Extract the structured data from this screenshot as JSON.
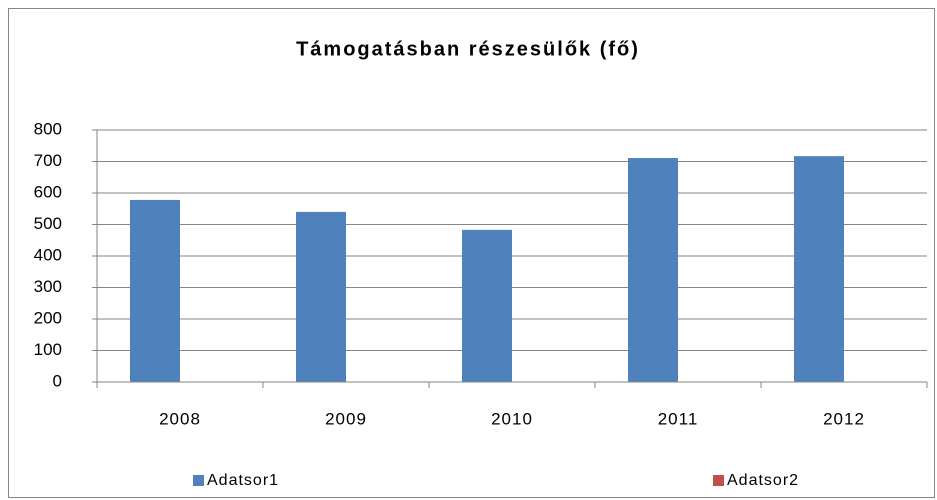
{
  "chart_data": {
    "type": "bar",
    "title": "Támogatásban részesülők (fő)",
    "categories": [
      "2008",
      "2009",
      "2010",
      "2011",
      "2012"
    ],
    "series": [
      {
        "name": "Adatsor1",
        "color": "#4f81bd",
        "values": [
          578,
          540,
          483,
          711,
          717
        ]
      },
      {
        "name": "Adatsor2",
        "color": "#c0504d",
        "values": [
          null,
          null,
          null,
          null,
          null
        ]
      }
    ],
    "ylim": [
      0,
      800
    ],
    "yticks": [
      0,
      100,
      200,
      300,
      400,
      500,
      600,
      700,
      800
    ],
    "grid": true,
    "legend": "bottom"
  }
}
